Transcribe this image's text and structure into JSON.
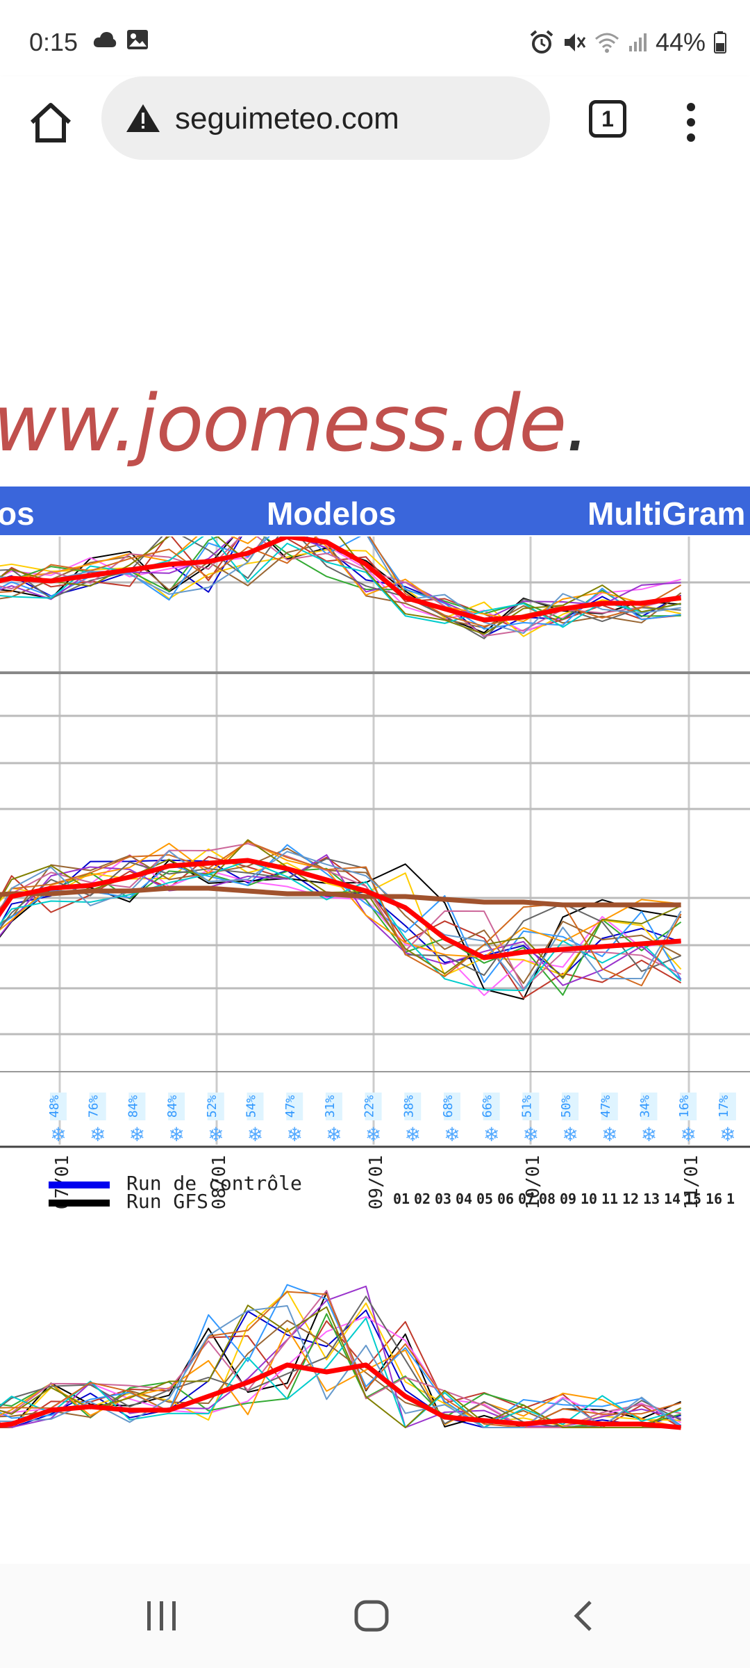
{
  "status_bar": {
    "time": "0:15",
    "battery": "44%",
    "icons_left": [
      "cloud-icon",
      "image-icon"
    ],
    "icons_right": [
      "alarm-icon",
      "mute-icon",
      "wifi-icon",
      "signal-icon",
      "battery-icon"
    ]
  },
  "browser": {
    "url": "seguimeteo.com",
    "tab_count": "1"
  },
  "page": {
    "banner_text": "ww.joomess.de",
    "banner_suffix": ".",
    "nav_left": "os",
    "nav_center": "Modelos",
    "nav_right": "MultiGram"
  },
  "chart_data": {
    "type": "line",
    "x_date_labels": [
      "07/01",
      "08/01",
      "09/01",
      "10/01",
      "11/01"
    ],
    "precip_probabilities": [
      "48%",
      "76%",
      "84%",
      "84%",
      "52%",
      "54%",
      "47%",
      "31%",
      "22%",
      "38%",
      "68%",
      "66%",
      "51%",
      "50%",
      "47%",
      "34%",
      "16%",
      "17%"
    ],
    "legend": [
      {
        "name": "Run de contrôle",
        "color": "#0000ee"
      },
      {
        "name": "Run GFS",
        "color": "#000000"
      }
    ],
    "day_numbers": [
      "01",
      "02",
      "03",
      "04",
      "05",
      "06",
      "07",
      "08",
      "09",
      "10",
      "11",
      "12",
      "13",
      "14",
      "15",
      "16",
      "1"
    ],
    "ensemble_colors": [
      "#0000cc",
      "#000000",
      "#c0392b",
      "#ff66ff",
      "#ffcc00",
      "#33aa33",
      "#996633",
      "#3399ff",
      "#9933cc",
      "#ff9900",
      "#666666",
      "#cc6699",
      "#00cccc",
      "#808000",
      "#d2691e",
      "#6699cc"
    ],
    "mean_color": "#ff0000",
    "reference_color": "#a0522d",
    "upper_panel": {
      "reference": [
        190,
        192,
        193,
        190,
        190,
        189,
        188,
        187,
        186,
        186,
        187,
        188,
        186,
        184,
        183,
        183,
        182,
        182,
        180
      ],
      "mean": [
        154,
        157,
        156,
        158,
        160,
        162,
        163,
        166,
        172,
        170,
        162,
        150,
        146,
        142,
        143,
        146,
        148,
        148,
        150
      ]
    },
    "middle_panel": {
      "reference": [
        140,
        141,
        141,
        142,
        142,
        143,
        143,
        142,
        141,
        141,
        140,
        140,
        139,
        138,
        138,
        137,
        137,
        137,
        137
      ],
      "mean": [
        120,
        140,
        143,
        144,
        147,
        151,
        152,
        153,
        150,
        146,
        142,
        136,
        125,
        118,
        120,
        121,
        122,
        123,
        124
      ]
    },
    "lower_panel": {
      "mean": [
        0,
        1,
        5,
        6,
        5,
        5,
        9,
        13,
        18,
        16,
        18,
        9,
        3,
        2,
        1,
        2,
        1,
        1,
        0
      ]
    }
  }
}
